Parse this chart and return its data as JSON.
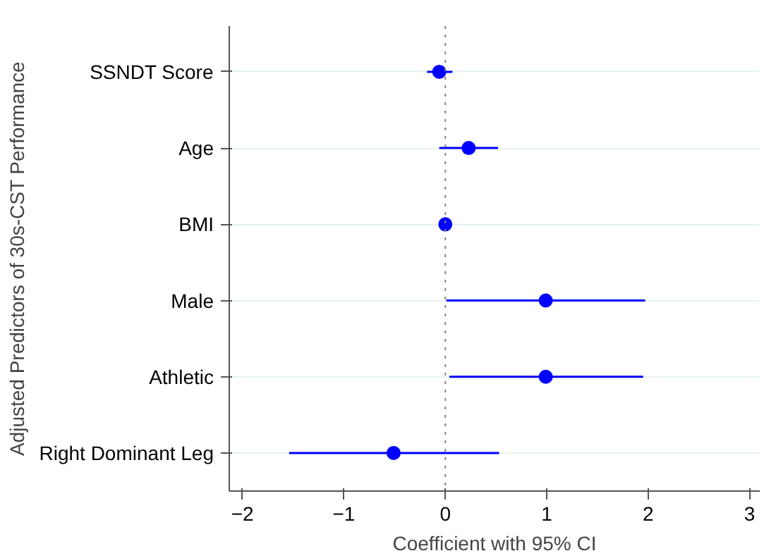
{
  "chart_data": {
    "type": "scatter",
    "orientation": "horizontal",
    "xlabel": "Coefficient with 95% CI",
    "ylabel": "Adjusted Predictors of 30s-CST Performance",
    "categories": [
      "SSNDT Score",
      "Age",
      "BMI",
      "Male",
      "Athletic",
      "Right Dominant Leg"
    ],
    "series": [
      {
        "color": "#0000ff",
        "values": [
          -0.06,
          0.23,
          0.0,
          0.99,
          0.99,
          -0.51
        ],
        "errors": [
          [
            -0.18,
            0.07
          ],
          [
            -0.06,
            0.52
          ],
          [
            -0.03,
            0.03
          ],
          [
            0.01,
            1.97
          ],
          [
            0.04,
            1.95
          ],
          [
            -1.54,
            0.53
          ]
        ]
      }
    ],
    "xlim": [
      -2.13,
      3.1
    ],
    "xticks": [
      -2,
      -1,
      0,
      1,
      2,
      3
    ],
    "ref_lines": [
      {
        "axis": "x",
        "value": 0,
        "color": "#808080",
        "line_style": "dotted"
      }
    ],
    "grid": "y",
    "marker": "circle"
  }
}
